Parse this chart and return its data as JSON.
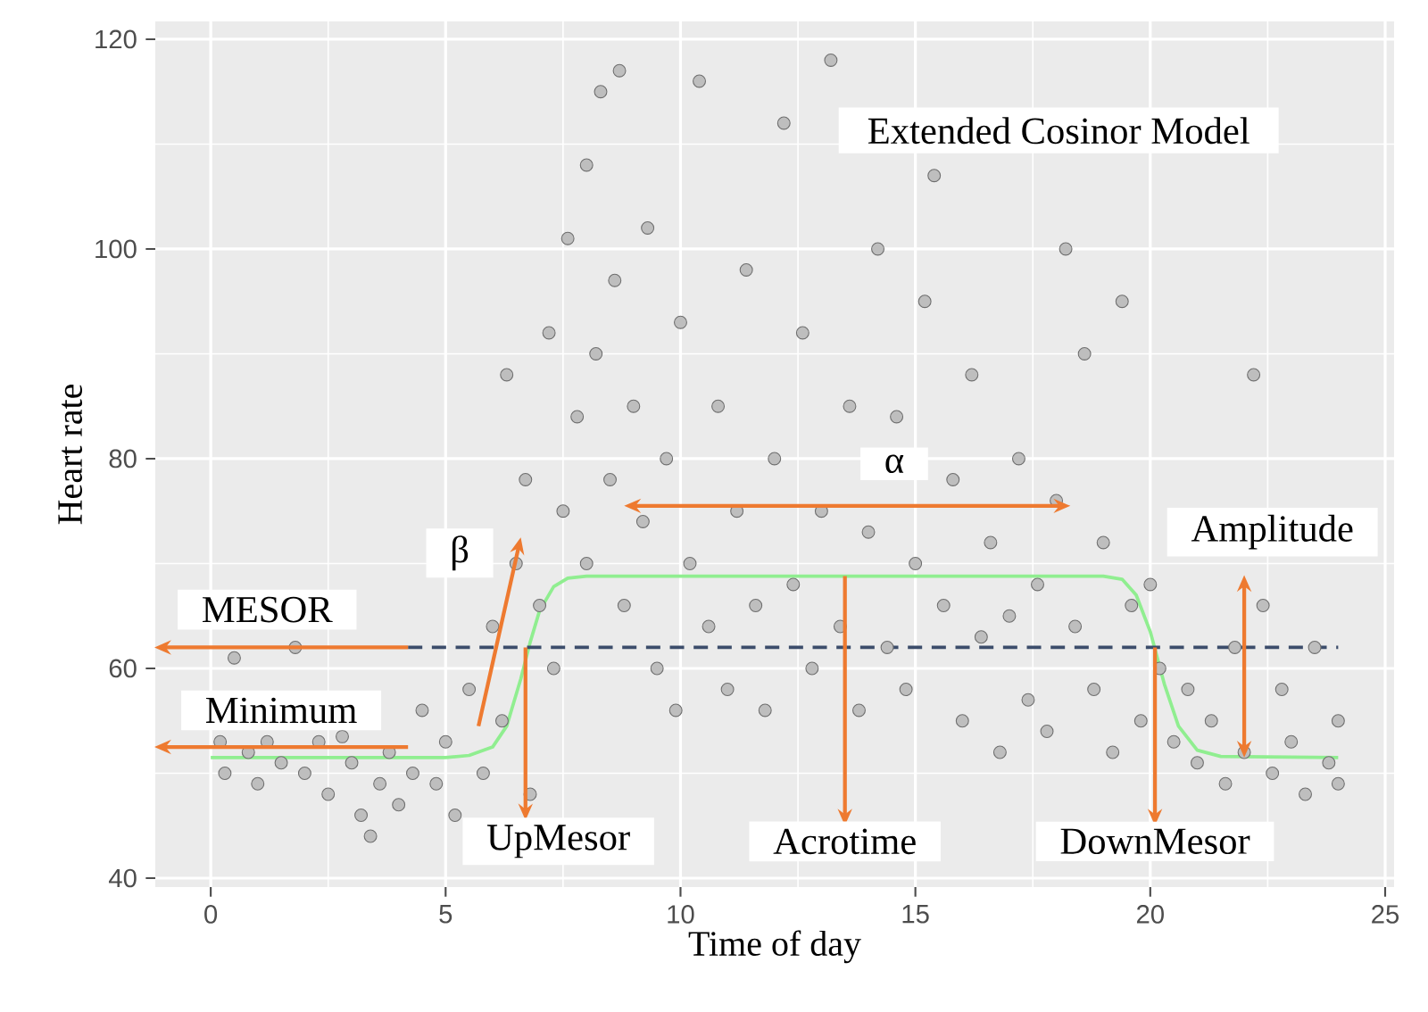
{
  "chart_data": {
    "type": "scatter",
    "title": "Extended Cosinor Model",
    "xlabel": "Time of day",
    "ylabel": "Heart rate",
    "xlim": [
      -1.18,
      25.19
    ],
    "ylim": [
      39.15,
      121.7
    ],
    "xticks": [
      0,
      5,
      10,
      15,
      20,
      25
    ],
    "yticks": [
      40,
      60,
      80,
      100,
      120
    ],
    "grid": true,
    "series": [
      {
        "marker": "circle",
        "color": "#6e6e6e",
        "x": [
          0.2,
          0.3,
          0.5,
          0.8,
          1,
          1.2,
          1.5,
          1.8,
          2,
          2.3,
          2.5,
          2.8,
          3,
          3.2,
          3.4,
          3.6,
          3.8,
          4,
          4.3,
          4.5,
          4.8,
          5,
          5.2,
          5.5,
          5.8,
          6,
          6.2,
          6.3,
          6.5,
          6.7,
          6.8,
          7,
          7.2,
          7.3,
          7.5,
          7.6,
          7.8,
          8,
          8,
          8.2,
          8.3,
          8.5,
          8.6,
          8.7,
          8.8,
          9,
          9.2,
          9.3,
          9.5,
          9.7,
          9.9,
          10,
          10.2,
          10.4,
          10.6,
          10.8,
          11,
          11.2,
          11.4,
          11.6,
          11.8,
          12,
          12.2,
          12.4,
          12.6,
          12.8,
          13,
          13.2,
          13.4,
          13.6,
          13.8,
          14,
          14.2,
          14.4,
          14.6,
          14.8,
          15,
          15.2,
          15.4,
          15.6,
          15.8,
          16,
          16.2,
          16.4,
          16.6,
          16.8,
          17,
          17.2,
          17.4,
          17.6,
          17.8,
          18,
          18.2,
          18.4,
          18.6,
          18.8,
          19,
          19.2,
          19.4,
          19.6,
          19.8,
          20,
          20.2,
          20.5,
          20.8,
          21,
          21.3,
          21.6,
          21.8,
          22,
          22.2,
          22.4,
          22.6,
          22.8,
          23,
          23.3,
          23.5,
          23.8,
          24,
          24
        ],
        "values": [
          53,
          50,
          61,
          52,
          49,
          53,
          51,
          62,
          50,
          53,
          48,
          53.5,
          51,
          46,
          44,
          49,
          52,
          47,
          50,
          56,
          49,
          53,
          46,
          58,
          50,
          64,
          55,
          88,
          70,
          78,
          48,
          66,
          92,
          60,
          75,
          101,
          84,
          70,
          108,
          90,
          115,
          78,
          97,
          117,
          66,
          85,
          74,
          102,
          60,
          80,
          56,
          93,
          70,
          116,
          64,
          85,
          58,
          75,
          98,
          66,
          56,
          80,
          112,
          68,
          92,
          60,
          75,
          118,
          64,
          85,
          56,
          73,
          100,
          62,
          84,
          58,
          70,
          95,
          107,
          66,
          78,
          55,
          88,
          63,
          72,
          52,
          65,
          80,
          57,
          68,
          54,
          76,
          100,
          64,
          90,
          58,
          72,
          52,
          95,
          66,
          55,
          68,
          60,
          53,
          58,
          51,
          55,
          49,
          62,
          52,
          88,
          66,
          50,
          58,
          53,
          48,
          62,
          51,
          55,
          49
        ]
      },
      {
        "type": "line",
        "marker": "none",
        "line_style": "solid",
        "color": "#90ee90",
        "x": [
          0,
          5,
          5.5,
          6,
          6.3,
          6.6,
          6.8,
          7.0,
          7.3,
          7.6,
          8,
          19,
          19.4,
          19.7,
          20,
          20.3,
          20.6,
          21,
          21.5,
          24
        ],
        "values": [
          51.5,
          51.5,
          51.7,
          52.5,
          54.5,
          59,
          62.5,
          65.5,
          67.8,
          68.6,
          68.8,
          68.8,
          68.5,
          67,
          63.5,
          58.5,
          54.5,
          52.2,
          51.6,
          51.5
        ]
      },
      {
        "type": "line",
        "marker": "none",
        "line_style": "dashed",
        "color": "#3c4d6b",
        "x": [
          4.2,
          24
        ],
        "values": [
          62,
          62
        ]
      }
    ],
    "annotations": [
      {
        "text": "MESOR",
        "x": 4.2,
        "y": 62
      },
      {
        "text": "Minimum",
        "x": 4.2,
        "y": 52.5
      },
      "β",
      {
        "text": "UpMesor",
        "x": 6.7,
        "y": 62
      },
      "α",
      {
        "text": "Acrotime",
        "x": 13.5,
        "y": 68.8
      },
      {
        "text": "DownMesor",
        "x": 20.1,
        "y": 62
      },
      {
        "text": "Amplitude",
        "x": 22,
        "y": 51.5
      }
    ]
  }
}
